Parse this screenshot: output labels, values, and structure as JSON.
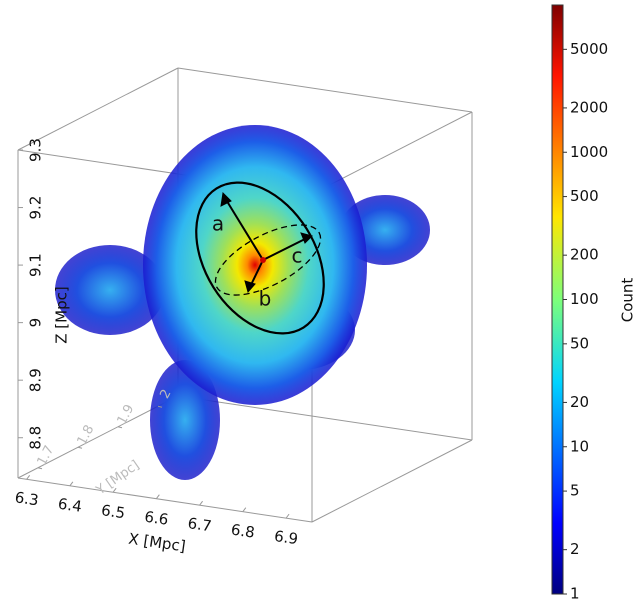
{
  "chart_data": {
    "type": "scatter3d",
    "xlabel": "X [Mpc]",
    "ylabel": "Y [Mpc]",
    "zlabel": "Z [Mpc]",
    "xlim": [
      6.28,
      6.96
    ],
    "xticks": [
      6.3,
      6.4,
      6.5,
      6.6,
      6.7,
      6.8,
      6.9
    ],
    "ylim": [
      1.65,
      2.05
    ],
    "yticks": [
      1.7,
      1.8,
      1.9,
      2.0
    ],
    "zlim": [
      8.73,
      9.3
    ],
    "zticks": [
      8.8,
      8.9,
      9.0,
      9.1,
      9.2,
      9.3
    ],
    "annotations": [
      "a",
      "b",
      "c"
    ],
    "colorbar": {
      "label": "Count",
      "scale": "log",
      "colormap": "jet",
      "lim": [
        1,
        10000
      ],
      "ticks": [
        1,
        2,
        5,
        10,
        20,
        50,
        100,
        200,
        500,
        1000,
        2000,
        5000
      ]
    }
  }
}
